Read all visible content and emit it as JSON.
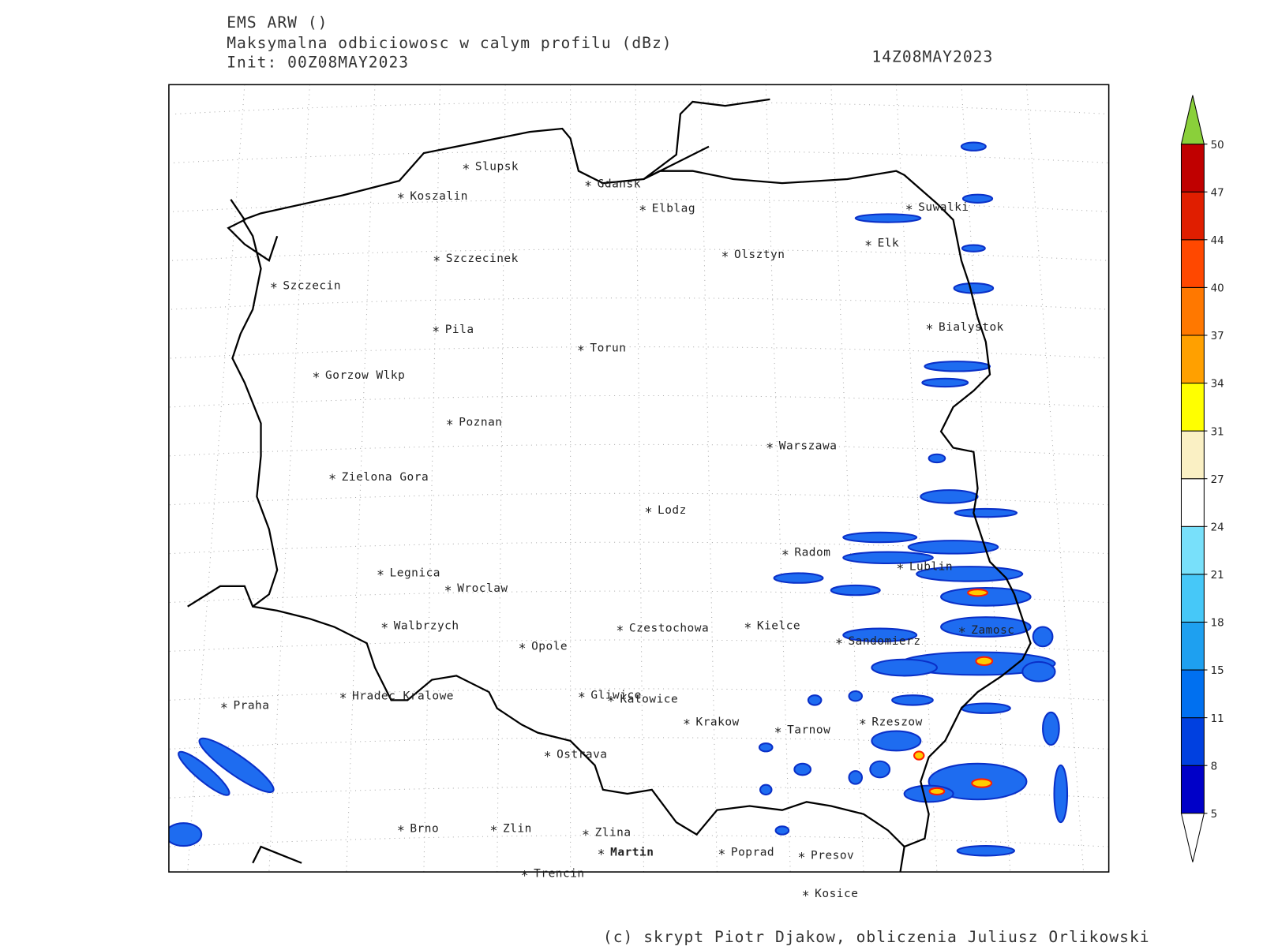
{
  "header": {
    "model": "EMS ARW ()",
    "title": "Maksymalna odbiciowosc w calym profilu (dBz)",
    "init": "Init: 00Z08MAY2023",
    "valid": "14Z08MAY2023"
  },
  "footer": "(c) skrypt Piotr Djakow, obliczenia Juliusz Orlikowski",
  "cities": [
    "Slupsk",
    "Koszalin",
    "Gdansk",
    "Elblag",
    "Suwalki",
    "Elk",
    "Olsztyn",
    "Szczecinek",
    "Szczecin",
    "Bialystok",
    "Pila",
    "Torun",
    "Gorzow Wlkp",
    "Poznan",
    "Warszawa",
    "Zielona Gora",
    "Lodz",
    "Radom",
    "Lublin",
    "Legnica",
    "Wroclaw",
    "Walbrzych",
    "Kielce",
    "Czestochowa",
    "Zamosc",
    "Sandomierz",
    "Opole",
    "Gliwice",
    "Katowice",
    "Hradec Kralowe",
    "Praha",
    "Krakow",
    "Rzeszow",
    "Tarnow",
    "Ostrava",
    "Brno",
    "Zlin",
    "Zlina",
    "Martin",
    "Poprad",
    "Presov",
    "Trencin",
    "Kosice"
  ],
  "colorbar": {
    "levels": [
      5,
      8,
      11,
      15,
      18,
      21,
      24,
      27,
      31,
      34,
      37,
      40,
      44,
      47,
      50
    ],
    "colors": [
      "#0000c8",
      "#0040e0",
      "#0070f0",
      "#1ea0f0",
      "#46c8f8",
      "#78e0fa",
      "#ffffff",
      "#faf0c4",
      "#ffff00",
      "#ffa000",
      "#ff7800",
      "#ff4800",
      "#e01e00",
      "#c00000"
    ],
    "over_color": "#8ad03a",
    "under_color": "#ffffff"
  }
}
